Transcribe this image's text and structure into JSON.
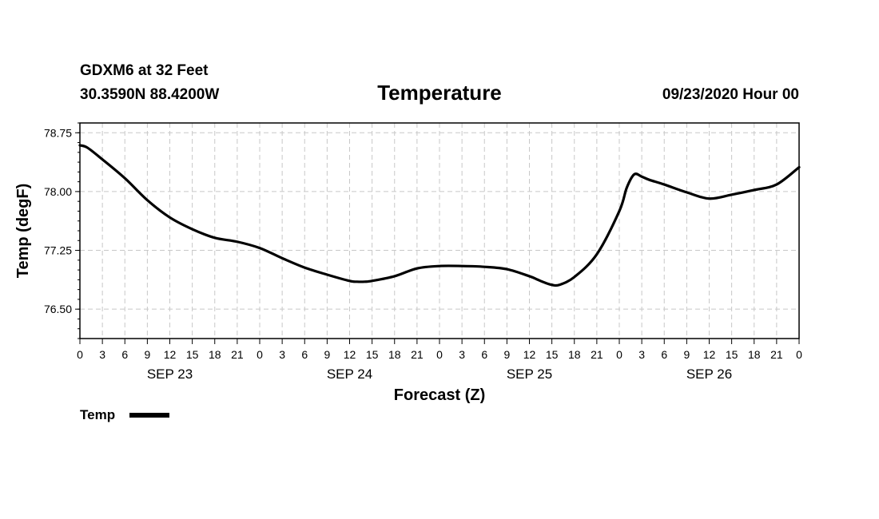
{
  "header": {
    "station": "GDXM6 at 32 Feet",
    "coords": "30.3590N 88.4200W",
    "datetime": "09/23/2020 Hour 00"
  },
  "chart_data": {
    "type": "line",
    "title": "Temperature",
    "xlabel": "Forecast (Z)",
    "ylabel": "Temp (degF)",
    "ylim": [
      76.125,
      78.875
    ],
    "yticks": [
      "76.50",
      "77.25",
      "78.00",
      "78.75"
    ],
    "yticks_values": [
      76.5,
      77.25,
      78.0,
      78.75
    ],
    "xlim": [
      0,
      96
    ],
    "x_tick_labels": [
      "0",
      "3",
      "6",
      "9",
      "12",
      "15",
      "18",
      "21",
      "0",
      "3",
      "6",
      "9",
      "12",
      "15",
      "18",
      "21",
      "0",
      "3",
      "6",
      "9",
      "12",
      "15",
      "18",
      "21",
      "0",
      "3",
      "6",
      "9",
      "12",
      "15",
      "18",
      "21",
      "0"
    ],
    "day_labels": [
      "SEP 23",
      "SEP 24",
      "SEP 25",
      "SEP 26"
    ],
    "series": [
      {
        "name": "Temp",
        "x": [
          0,
          1,
          3,
          6,
          9,
          12,
          15,
          18,
          21,
          24,
          27,
          30,
          33,
          36,
          37,
          38,
          39,
          42,
          45,
          48,
          51,
          54,
          57,
          60,
          61,
          62,
          63,
          64,
          66,
          69,
          72,
          73,
          74,
          75,
          76,
          78,
          81,
          84,
          87,
          90,
          93,
          96
        ],
        "values": [
          78.59,
          78.56,
          78.41,
          78.17,
          77.89,
          77.67,
          77.52,
          77.41,
          77.36,
          77.28,
          77.15,
          77.03,
          76.94,
          76.86,
          76.85,
          76.85,
          76.86,
          76.92,
          77.02,
          77.05,
          77.05,
          77.04,
          77.01,
          76.92,
          76.88,
          76.84,
          76.81,
          76.81,
          76.91,
          77.2,
          77.75,
          78.05,
          78.22,
          78.19,
          78.15,
          78.09,
          77.99,
          77.91,
          77.96,
          78.02,
          78.09,
          78.31
        ]
      }
    ]
  },
  "legend": {
    "label": "Temp"
  }
}
